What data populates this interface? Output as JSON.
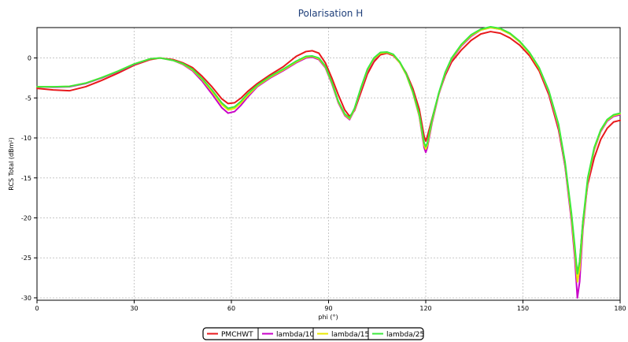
{
  "chart_data": {
    "type": "line",
    "title": "Polarisation H",
    "xlabel": "phi (°)",
    "ylabel": "RCS Total (dBm²)",
    "xlim": [
      0,
      180
    ],
    "ylim": [
      -30.3,
      3.8
    ],
    "xticks": [
      0,
      30,
      60,
      90,
      120,
      150,
      180
    ],
    "yticks": [
      0,
      -5,
      -10,
      -15,
      -20,
      -25,
      -30
    ],
    "grid": true,
    "legend": "bottom-center",
    "series": [
      {
        "name": "PMCHWT",
        "color": "#e8191c",
        "points": [
          [
            0,
            -3.8
          ],
          [
            5,
            -4.0
          ],
          [
            10,
            -4.1
          ],
          [
            15,
            -3.6
          ],
          [
            20,
            -2.8
          ],
          [
            25,
            -1.9
          ],
          [
            30,
            -0.9
          ],
          [
            35,
            -0.2
          ],
          [
            38,
            0.0
          ],
          [
            42,
            -0.2
          ],
          [
            45,
            -0.6
          ],
          [
            48,
            -1.2
          ],
          [
            51,
            -2.3
          ],
          [
            54,
            -3.6
          ],
          [
            57,
            -5.1
          ],
          [
            59,
            -5.7
          ],
          [
            61,
            -5.6
          ],
          [
            63,
            -5.0
          ],
          [
            65,
            -4.2
          ],
          [
            68,
            -3.2
          ],
          [
            72,
            -2.1
          ],
          [
            76,
            -1.1
          ],
          [
            80,
            0.2
          ],
          [
            83,
            0.8
          ],
          [
            85,
            0.9
          ],
          [
            87,
            0.6
          ],
          [
            89,
            -0.6
          ],
          [
            91,
            -2.5
          ],
          [
            93,
            -4.6
          ],
          [
            95,
            -6.5
          ],
          [
            96.5,
            -7.3
          ],
          [
            98,
            -6.6
          ],
          [
            100,
            -4.3
          ],
          [
            102,
            -2.0
          ],
          [
            104,
            -0.5
          ],
          [
            106,
            0.4
          ],
          [
            108,
            0.6
          ],
          [
            110,
            0.3
          ],
          [
            112,
            -0.6
          ],
          [
            114,
            -1.9
          ],
          [
            116,
            -3.8
          ],
          [
            118,
            -6.4
          ],
          [
            119.5,
            -9.8
          ],
          [
            120,
            -10.4
          ],
          [
            120.5,
            -9.8
          ],
          [
            122,
            -7.5
          ],
          [
            124,
            -4.5
          ],
          [
            126,
            -2.2
          ],
          [
            128,
            -0.5
          ],
          [
            131,
            1.0
          ],
          [
            134,
            2.2
          ],
          [
            137,
            3.0
          ],
          [
            140,
            3.3
          ],
          [
            143,
            3.1
          ],
          [
            146,
            2.5
          ],
          [
            149,
            1.6
          ],
          [
            152,
            0.3
          ],
          [
            155,
            -1.6
          ],
          [
            158,
            -4.6
          ],
          [
            161,
            -9.0
          ],
          [
            163,
            -13.5
          ],
          [
            165,
            -20.0
          ],
          [
            166,
            -24.0
          ],
          [
            166.8,
            -27.0
          ],
          [
            167.5,
            -25.5
          ],
          [
            168.5,
            -20.5
          ],
          [
            170,
            -15.8
          ],
          [
            172,
            -12.5
          ],
          [
            174,
            -10.2
          ],
          [
            176,
            -8.8
          ],
          [
            178,
            -8.0
          ],
          [
            180,
            -7.8
          ]
        ]
      },
      {
        "name": "lambda/10",
        "color": "#c800c8",
        "points": [
          [
            0,
            -3.6
          ],
          [
            5,
            -3.65
          ],
          [
            10,
            -3.6
          ],
          [
            15,
            -3.2
          ],
          [
            20,
            -2.5
          ],
          [
            25,
            -1.7
          ],
          [
            30,
            -0.8
          ],
          [
            35,
            -0.1
          ],
          [
            38,
            0.0
          ],
          [
            42,
            -0.3
          ],
          [
            45,
            -0.8
          ],
          [
            48,
            -1.6
          ],
          [
            51,
            -2.9
          ],
          [
            54,
            -4.5
          ],
          [
            57,
            -6.2
          ],
          [
            59,
            -6.9
          ],
          [
            61,
            -6.7
          ],
          [
            63,
            -5.9
          ],
          [
            65,
            -4.9
          ],
          [
            68,
            -3.6
          ],
          [
            72,
            -2.5
          ],
          [
            76,
            -1.6
          ],
          [
            80,
            -0.6
          ],
          [
            83,
            0.0
          ],
          [
            85,
            0.1
          ],
          [
            87,
            -0.2
          ],
          [
            89,
            -1.2
          ],
          [
            91,
            -3.2
          ],
          [
            93,
            -5.6
          ],
          [
            95,
            -7.2
          ],
          [
            96.5,
            -7.7
          ],
          [
            98,
            -6.5
          ],
          [
            100,
            -3.9
          ],
          [
            102,
            -1.6
          ],
          [
            104,
            -0.2
          ],
          [
            106,
            0.6
          ],
          [
            108,
            0.7
          ],
          [
            110,
            0.4
          ],
          [
            112,
            -0.6
          ],
          [
            114,
            -2.1
          ],
          [
            116,
            -4.3
          ],
          [
            118,
            -7.3
          ],
          [
            119.5,
            -11.2
          ],
          [
            120,
            -11.8
          ],
          [
            120.5,
            -11.2
          ],
          [
            122,
            -8.0
          ],
          [
            124,
            -4.6
          ],
          [
            126,
            -2.0
          ],
          [
            128,
            -0.2
          ],
          [
            131,
            1.5
          ],
          [
            134,
            2.7
          ],
          [
            137,
            3.5
          ],
          [
            140,
            3.8
          ],
          [
            143,
            3.6
          ],
          [
            146,
            3.0
          ],
          [
            149,
            2.0
          ],
          [
            152,
            0.6
          ],
          [
            155,
            -1.3
          ],
          [
            158,
            -4.3
          ],
          [
            161,
            -8.7
          ],
          [
            163,
            -13.5
          ],
          [
            165,
            -20.5
          ],
          [
            166,
            -25.0
          ],
          [
            166.8,
            -30.0
          ],
          [
            167.5,
            -28.0
          ],
          [
            168.5,
            -21.5
          ],
          [
            170,
            -15.5
          ],
          [
            172,
            -11.5
          ],
          [
            174,
            -9.2
          ],
          [
            176,
            -7.9
          ],
          [
            178,
            -7.3
          ],
          [
            180,
            -7.1
          ]
        ]
      },
      {
        "name": "lambda/15",
        "color": "#e8e800",
        "points": [
          [
            0,
            -3.6
          ],
          [
            5,
            -3.6
          ],
          [
            10,
            -3.55
          ],
          [
            15,
            -3.15
          ],
          [
            20,
            -2.45
          ],
          [
            25,
            -1.65
          ],
          [
            30,
            -0.75
          ],
          [
            35,
            -0.1
          ],
          [
            38,
            0.0
          ],
          [
            42,
            -0.3
          ],
          [
            45,
            -0.75
          ],
          [
            48,
            -1.5
          ],
          [
            51,
            -2.7
          ],
          [
            54,
            -4.2
          ],
          [
            57,
            -5.8
          ],
          [
            59,
            -6.5
          ],
          [
            61,
            -6.3
          ],
          [
            63,
            -5.6
          ],
          [
            65,
            -4.7
          ],
          [
            68,
            -3.5
          ],
          [
            72,
            -2.4
          ],
          [
            76,
            -1.5
          ],
          [
            80,
            -0.5
          ],
          [
            83,
            0.1
          ],
          [
            85,
            0.2
          ],
          [
            87,
            -0.1
          ],
          [
            89,
            -1.1
          ],
          [
            91,
            -3.1
          ],
          [
            93,
            -5.5
          ],
          [
            95,
            -7.1
          ],
          [
            96.5,
            -7.6
          ],
          [
            98,
            -6.4
          ],
          [
            100,
            -3.8
          ],
          [
            102,
            -1.5
          ],
          [
            104,
            -0.1
          ],
          [
            106,
            0.6
          ],
          [
            108,
            0.7
          ],
          [
            110,
            0.4
          ],
          [
            112,
            -0.6
          ],
          [
            114,
            -2.1
          ],
          [
            116,
            -4.3
          ],
          [
            118,
            -7.2
          ],
          [
            119.5,
            -10.9
          ],
          [
            120,
            -11.4
          ],
          [
            120.5,
            -10.9
          ],
          [
            122,
            -7.8
          ],
          [
            124,
            -4.5
          ],
          [
            126,
            -1.9
          ],
          [
            128,
            -0.1
          ],
          [
            131,
            1.6
          ],
          [
            134,
            2.8
          ],
          [
            137,
            3.5
          ],
          [
            140,
            3.8
          ],
          [
            143,
            3.6
          ],
          [
            146,
            3.0
          ],
          [
            149,
            2.0
          ],
          [
            152,
            0.6
          ],
          [
            155,
            -1.3
          ],
          [
            158,
            -4.2
          ],
          [
            161,
            -8.5
          ],
          [
            163,
            -13.2
          ],
          [
            165,
            -20.0
          ],
          [
            166,
            -24.2
          ],
          [
            166.8,
            -28.0
          ],
          [
            167.5,
            -26.5
          ],
          [
            168.5,
            -21.0
          ],
          [
            170,
            -15.3
          ],
          [
            172,
            -11.4
          ],
          [
            174,
            -9.1
          ],
          [
            176,
            -7.8
          ],
          [
            178,
            -7.2
          ],
          [
            180,
            -7.0
          ]
        ]
      },
      {
        "name": "lambda/25",
        "color": "#3ce83c",
        "points": [
          [
            0,
            -3.6
          ],
          [
            5,
            -3.6
          ],
          [
            10,
            -3.55
          ],
          [
            15,
            -3.15
          ],
          [
            20,
            -2.45
          ],
          [
            25,
            -1.65
          ],
          [
            30,
            -0.75
          ],
          [
            35,
            -0.1
          ],
          [
            38,
            0.0
          ],
          [
            42,
            -0.3
          ],
          [
            45,
            -0.7
          ],
          [
            48,
            -1.4
          ],
          [
            51,
            -2.6
          ],
          [
            54,
            -4.0
          ],
          [
            57,
            -5.6
          ],
          [
            59,
            -6.3
          ],
          [
            61,
            -6.1
          ],
          [
            63,
            -5.4
          ],
          [
            65,
            -4.5
          ],
          [
            68,
            -3.4
          ],
          [
            72,
            -2.3
          ],
          [
            76,
            -1.4
          ],
          [
            80,
            -0.4
          ],
          [
            83,
            0.2
          ],
          [
            85,
            0.25
          ],
          [
            87,
            0.0
          ],
          [
            89,
            -1.0
          ],
          [
            91,
            -3.0
          ],
          [
            93,
            -5.4
          ],
          [
            95,
            -7.0
          ],
          [
            96.5,
            -7.5
          ],
          [
            98,
            -6.3
          ],
          [
            100,
            -3.7
          ],
          [
            102,
            -1.4
          ],
          [
            104,
            0.0
          ],
          [
            106,
            0.7
          ],
          [
            108,
            0.75
          ],
          [
            110,
            0.45
          ],
          [
            112,
            -0.5
          ],
          [
            114,
            -2.0
          ],
          [
            116,
            -4.2
          ],
          [
            118,
            -7.0
          ],
          [
            119.5,
            -10.6
          ],
          [
            120,
            -11.1
          ],
          [
            120.5,
            -10.6
          ],
          [
            122,
            -7.6
          ],
          [
            124,
            -4.4
          ],
          [
            126,
            -1.8
          ],
          [
            128,
            0.0
          ],
          [
            131,
            1.7
          ],
          [
            134,
            2.9
          ],
          [
            137,
            3.6
          ],
          [
            140,
            3.9
          ],
          [
            143,
            3.7
          ],
          [
            146,
            3.1
          ],
          [
            149,
            2.1
          ],
          [
            152,
            0.7
          ],
          [
            155,
            -1.2
          ],
          [
            158,
            -4.1
          ],
          [
            161,
            -8.3
          ],
          [
            163,
            -13.0
          ],
          [
            165,
            -19.5
          ],
          [
            166,
            -23.5
          ],
          [
            166.8,
            -27.0
          ],
          [
            167.5,
            -25.5
          ],
          [
            168.5,
            -20.5
          ],
          [
            170,
            -15.0
          ],
          [
            172,
            -11.2
          ],
          [
            174,
            -9.0
          ],
          [
            176,
            -7.7
          ],
          [
            178,
            -7.1
          ],
          [
            180,
            -6.9
          ]
        ]
      }
    ]
  }
}
